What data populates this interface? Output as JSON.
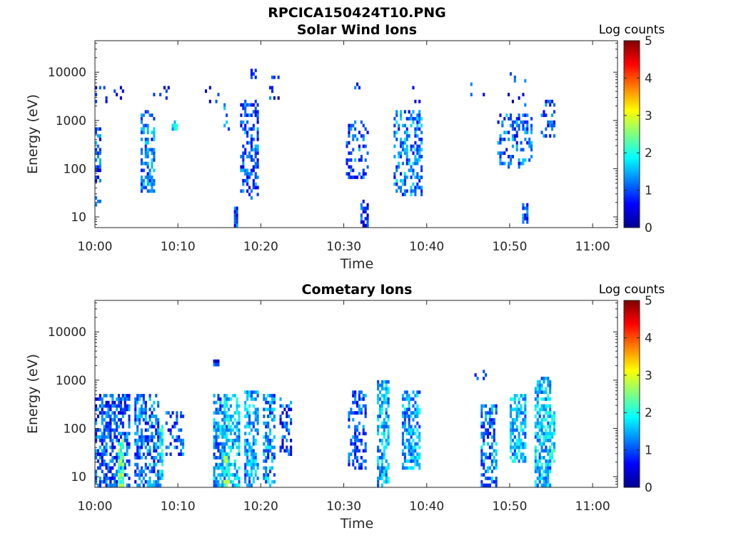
{
  "figure_title": "RPCICA150424T10.PNG",
  "chart_data": [
    {
      "type": "heatmap",
      "title": "Solar Wind Ions",
      "xlabel": "Time",
      "ylabel": "Energy (eV)",
      "x_ticks": [
        "10:00",
        "10:10",
        "10:20",
        "10:30",
        "10:40",
        "10:50",
        "11:00"
      ],
      "x_range_minutes": [
        0,
        63
      ],
      "y_scale": "log",
      "y_ticks": [
        "10",
        "100",
        "1000",
        "10000"
      ],
      "y_range": [
        6,
        45000
      ],
      "colorbar": {
        "label": "Log counts",
        "ticks": [
          "0",
          "1",
          "2",
          "3",
          "4",
          "5"
        ],
        "range": [
          0,
          5
        ],
        "colormap": "jet"
      },
      "grid": false,
      "bursts": [
        {
          "t": 0.3,
          "dt": 0.6,
          "emin": 60,
          "emax": 700,
          "level": 1.0,
          "density": 0.55
        },
        {
          "t": 0.3,
          "dt": 0.6,
          "emin": 18,
          "emax": 25,
          "level": 0.8,
          "density": 0.6
        },
        {
          "t": 1.5,
          "dt": 3.5,
          "emin": 2500,
          "emax": 5000,
          "level": 0.8,
          "density": 0.15
        },
        {
          "t": 6.3,
          "dt": 1.4,
          "emin": 35,
          "emax": 1600,
          "level": 1.2,
          "density": 0.45
        },
        {
          "t": 8.0,
          "dt": 2.5,
          "emin": 2800,
          "emax": 5200,
          "level": 0.8,
          "density": 0.15
        },
        {
          "t": 9.6,
          "dt": 0.7,
          "emin": 700,
          "emax": 1000,
          "level": 1.8,
          "density": 0.9
        },
        {
          "t": 14.0,
          "dt": 1.5,
          "emin": 2500,
          "emax": 4500,
          "level": 0.8,
          "density": 0.15
        },
        {
          "t": 15.8,
          "dt": 0.5,
          "emin": 500,
          "emax": 2000,
          "level": 1.2,
          "density": 0.35
        },
        {
          "t": 16.9,
          "dt": 0.3,
          "emin": 7,
          "emax": 14,
          "level": 1.0,
          "density": 1.0
        },
        {
          "t": 18.5,
          "dt": 2.0,
          "emin": 25,
          "emax": 2500,
          "level": 1.0,
          "density": 0.45
        },
        {
          "t": 19.0,
          "dt": 0.5,
          "emin": 8000,
          "emax": 11000,
          "level": 0.8,
          "density": 0.6
        },
        {
          "t": 21.5,
          "dt": 1.0,
          "emin": 2500,
          "emax": 7500,
          "level": 0.8,
          "density": 0.12
        },
        {
          "t": 31.5,
          "dt": 2.5,
          "emin": 70,
          "emax": 900,
          "level": 1.0,
          "density": 0.3
        },
        {
          "t": 31.5,
          "dt": 0.5,
          "emin": 5000,
          "emax": 6000,
          "level": 0.8,
          "density": 0.6
        },
        {
          "t": 32.5,
          "dt": 0.6,
          "emin": 7,
          "emax": 22,
          "level": 0.8,
          "density": 0.4
        },
        {
          "t": 37.8,
          "dt": 3.2,
          "emin": 30,
          "emax": 1500,
          "level": 1.2,
          "density": 0.4
        },
        {
          "t": 38.5,
          "dt": 1.0,
          "emin": 2500,
          "emax": 5000,
          "level": 0.8,
          "density": 0.25
        },
        {
          "t": 46.0,
          "dt": 1.5,
          "emin": 3500,
          "emax": 6000,
          "level": 0.8,
          "density": 0.2
        },
        {
          "t": 50.5,
          "dt": 4.0,
          "emin": 100,
          "emax": 1200,
          "level": 1.1,
          "density": 0.35
        },
        {
          "t": 50.8,
          "dt": 2.0,
          "emin": 2000,
          "emax": 9000,
          "level": 0.8,
          "density": 0.15
        },
        {
          "t": 51.8,
          "dt": 0.4,
          "emin": 8,
          "emax": 18,
          "level": 1.0,
          "density": 0.8
        },
        {
          "t": 54.5,
          "dt": 1.5,
          "emin": 500,
          "emax": 2500,
          "level": 1.0,
          "density": 0.3
        }
      ]
    },
    {
      "type": "heatmap",
      "title": "Cometary Ions",
      "xlabel": "Time",
      "ylabel": "Energy (eV)",
      "x_ticks": [
        "10:00",
        "10:10",
        "10:20",
        "10:30",
        "10:40",
        "10:50",
        "11:00"
      ],
      "x_range_minutes": [
        0,
        63
      ],
      "y_scale": "log",
      "y_ticks": [
        "10",
        "100",
        "1000",
        "10000"
      ],
      "y_range": [
        6,
        45000
      ],
      "colorbar": {
        "label": "Log counts",
        "ticks": [
          "0",
          "1",
          "2",
          "3",
          "4",
          "5"
        ],
        "range": [
          0,
          5
        ],
        "colormap": "jet"
      },
      "grid": false,
      "bursts": [
        {
          "t": 2.0,
          "dt": 4.0,
          "emin": 6,
          "emax": 450,
          "level": 1.0,
          "density": 0.55
        },
        {
          "t": 3.1,
          "dt": 0.3,
          "emin": 6,
          "emax": 60,
          "level": 2.3,
          "density": 0.8
        },
        {
          "t": 6.2,
          "dt": 2.8,
          "emin": 6,
          "emax": 450,
          "level": 1.1,
          "density": 0.6
        },
        {
          "t": 8.0,
          "dt": 0.4,
          "emin": 6,
          "emax": 100,
          "level": 1.8,
          "density": 0.7
        },
        {
          "t": 9.5,
          "dt": 2.0,
          "emin": 30,
          "emax": 200,
          "level": 1.0,
          "density": 0.35
        },
        {
          "t": 15.0,
          "dt": 1.5,
          "emin": 6,
          "emax": 450,
          "level": 1.3,
          "density": 0.65
        },
        {
          "t": 16.5,
          "dt": 1.8,
          "emin": 6,
          "emax": 450,
          "level": 1.6,
          "density": 0.6
        },
        {
          "t": 15.8,
          "dt": 0.5,
          "emin": 6,
          "emax": 30,
          "level": 2.5,
          "density": 0.7
        },
        {
          "t": 18.8,
          "dt": 1.6,
          "emin": 6,
          "emax": 600,
          "level": 1.4,
          "density": 0.6
        },
        {
          "t": 21.0,
          "dt": 1.4,
          "emin": 6,
          "emax": 500,
          "level": 1.3,
          "density": 0.55
        },
        {
          "t": 23.0,
          "dt": 1.3,
          "emin": 30,
          "emax": 400,
          "level": 1.0,
          "density": 0.45
        },
        {
          "t": 14.6,
          "dt": 0.3,
          "emin": 2200,
          "emax": 2600,
          "level": 0.8,
          "density": 1.0
        },
        {
          "t": 31.5,
          "dt": 2.0,
          "emin": 15,
          "emax": 600,
          "level": 1.0,
          "density": 0.45
        },
        {
          "t": 34.8,
          "dt": 1.3,
          "emin": 6,
          "emax": 1000,
          "level": 1.5,
          "density": 0.6
        },
        {
          "t": 38.0,
          "dt": 2.0,
          "emin": 15,
          "emax": 600,
          "level": 1.4,
          "density": 0.6
        },
        {
          "t": 47.5,
          "dt": 1.6,
          "emin": 6,
          "emax": 300,
          "level": 1.2,
          "density": 0.6
        },
        {
          "t": 46.5,
          "dt": 1.2,
          "emin": 1100,
          "emax": 1600,
          "level": 0.8,
          "density": 0.4
        },
        {
          "t": 51.0,
          "dt": 1.8,
          "emin": 20,
          "emax": 500,
          "level": 1.5,
          "density": 0.6
        },
        {
          "t": 54.0,
          "dt": 1.6,
          "emin": 6,
          "emax": 1100,
          "level": 1.5,
          "density": 0.6
        },
        {
          "t": 55.0,
          "dt": 0.5,
          "emin": 20,
          "emax": 200,
          "level": 1.8,
          "density": 0.7
        }
      ]
    }
  ]
}
